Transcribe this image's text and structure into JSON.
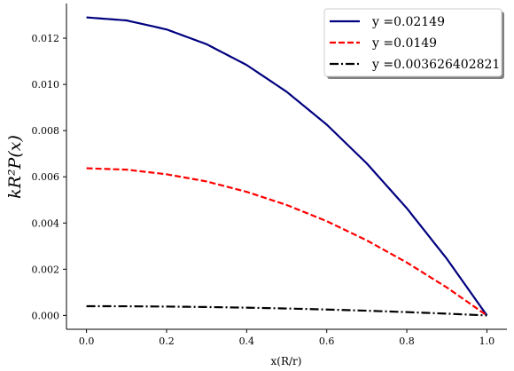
{
  "chart_data": {
    "type": "line",
    "xlabel": "x(R/r)",
    "ylabel": "kR²P(x)",
    "xlim": [
      -0.05,
      1.05
    ],
    "ylim": [
      -0.0006,
      0.0135
    ],
    "xticks": [
      "0.0",
      "0.2",
      "0.4",
      "0.6",
      "0.8",
      "1.0"
    ],
    "yticks": [
      "0.000",
      "0.002",
      "0.004",
      "0.006",
      "0.008",
      "0.010",
      "0.012"
    ],
    "grid": false,
    "legend_position": "top-right",
    "series": [
      {
        "name": "y =0.02149",
        "color": "#00007f",
        "dash": "solid",
        "x": [
          0.0,
          0.1,
          0.2,
          0.3,
          0.4,
          0.5,
          0.6,
          0.7,
          0.8,
          0.9,
          1.0
        ],
        "y": [
          0.0129,
          0.01277,
          0.01238,
          0.01174,
          0.01084,
          0.00968,
          0.00826,
          0.00658,
          0.00464,
          0.00245,
          0.0
        ]
      },
      {
        "name": "y =0.0149",
        "color": "#ff0000",
        "dash": "dashed",
        "x": [
          0.0,
          0.1,
          0.2,
          0.3,
          0.4,
          0.5,
          0.6,
          0.7,
          0.8,
          0.9,
          1.0
        ],
        "y": [
          0.00637,
          0.00631,
          0.00611,
          0.0058,
          0.00535,
          0.00478,
          0.00408,
          0.00325,
          0.00229,
          0.00121,
          0.0
        ]
      },
      {
        "name": "y =0.003626402821",
        "color": "#000000",
        "dash": "dashdot",
        "x": [
          0.0,
          0.1,
          0.2,
          0.3,
          0.4,
          0.5,
          0.6,
          0.7,
          0.8,
          0.9,
          1.0
        ],
        "y": [
          0.0004,
          0.000396,
          0.000384,
          0.000364,
          0.000336,
          0.0003,
          0.000256,
          0.000204,
          0.000144,
          7.6e-05,
          0.0
        ]
      }
    ]
  }
}
